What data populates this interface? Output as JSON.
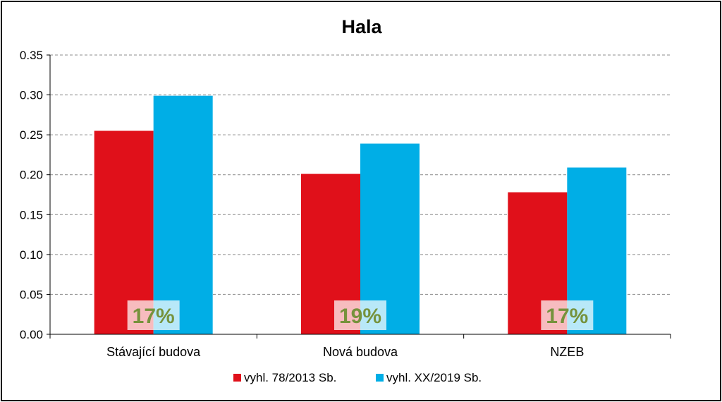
{
  "chart_data": {
    "type": "bar",
    "title": "Hala",
    "categories": [
      "Stávající budova",
      "Nová budova",
      "NZEB"
    ],
    "series": [
      {
        "name": "vyhl. 78/2013 Sb.",
        "color": "#e0101a",
        "values": [
          0.255,
          0.201,
          0.178
        ]
      },
      {
        "name": "vyhl. XX/2019 Sb.",
        "color": "#00aee6",
        "values": [
          0.299,
          0.239,
          0.209
        ]
      }
    ],
    "annotations": [
      "17%",
      "19%",
      "17%"
    ],
    "ylim": [
      0,
      0.35
    ],
    "yticks": [
      "0.00",
      "0.05",
      "0.10",
      "0.15",
      "0.20",
      "0.25",
      "0.30",
      "0.35"
    ],
    "grid": true,
    "legend": "bottom"
  }
}
